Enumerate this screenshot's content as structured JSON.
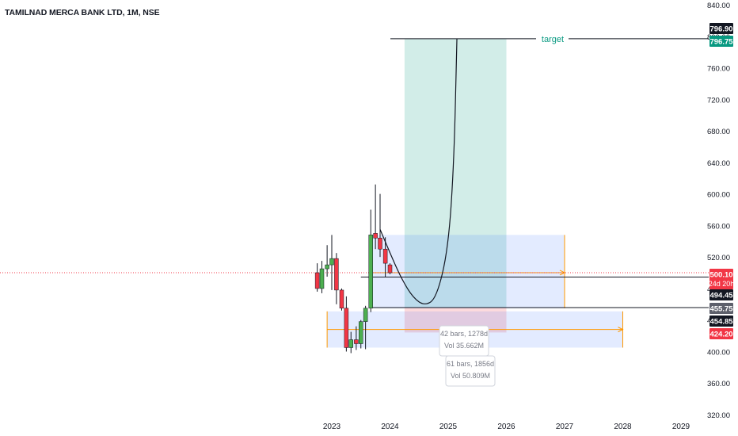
{
  "header": {
    "symbol_title": "TAMILNAD MERCA BANK LTD, 1M, NSE"
  },
  "colors": {
    "up": "#4caf50",
    "down": "#f23645",
    "target_green": "#089981",
    "price_line": "#f23645",
    "orange": "#ff9800",
    "blue_zone": "#2962ff"
  },
  "chart_data": {
    "type": "candlestick",
    "title": "TAMILNAD MERCA BANK LTD, 1M, NSE",
    "ylim": [
      320,
      845
    ],
    "y_ticks": [
      320,
      360,
      400,
      440,
      480,
      520,
      560,
      600,
      640,
      680,
      720,
      760,
      800,
      840
    ],
    "y_tick_labels": [
      "320.00",
      "360.00",
      "400.00",
      "440.00",
      "480.00",
      "520.00",
      "560.00",
      "600.00",
      "640.00",
      "680.00",
      "720.00",
      "760.00",
      "800.00",
      "840.00"
    ],
    "x_ticks": [
      2023,
      2024,
      2025,
      2026,
      2027,
      2028,
      2029
    ],
    "x_tick_labels": [
      "2023",
      "2024",
      "2025",
      "2026",
      "2027",
      "2028",
      "2029"
    ],
    "candles": [
      {
        "t": 2022.75,
        "o": 500,
        "h": 512,
        "l": 476,
        "c": 480
      },
      {
        "t": 2022.83,
        "o": 480,
        "h": 515,
        "l": 474,
        "c": 505
      },
      {
        "t": 2022.92,
        "o": 505,
        "h": 535,
        "l": 495,
        "c": 510
      },
      {
        "t": 2023.0,
        "o": 510,
        "h": 548,
        "l": 478,
        "c": 518
      },
      {
        "t": 2023.08,
        "o": 518,
        "h": 525,
        "l": 460,
        "c": 478
      },
      {
        "t": 2023.17,
        "o": 478,
        "h": 480,
        "l": 452,
        "c": 455
      },
      {
        "t": 2023.25,
        "o": 455,
        "h": 470,
        "l": 400,
        "c": 405
      },
      {
        "t": 2023.33,
        "o": 405,
        "h": 425,
        "l": 398,
        "c": 415
      },
      {
        "t": 2023.42,
        "o": 415,
        "h": 432,
        "l": 402,
        "c": 410
      },
      {
        "t": 2023.5,
        "o": 410,
        "h": 440,
        "l": 404,
        "c": 438
      },
      {
        "t": 2023.58,
        "o": 438,
        "h": 458,
        "l": 403,
        "c": 455
      },
      {
        "t": 2023.67,
        "o": 455,
        "h": 580,
        "l": 450,
        "c": 548
      },
      {
        "t": 2023.75,
        "o": 550,
        "h": 612,
        "l": 530,
        "c": 544
      },
      {
        "t": 2023.83,
        "o": 544,
        "h": 600,
        "l": 520,
        "c": 530
      },
      {
        "t": 2023.92,
        "o": 530,
        "h": 545,
        "l": 495,
        "c": 512
      },
      {
        "t": 2024.0,
        "o": 510,
        "h": 512,
        "l": 498,
        "c": 500
      }
    ],
    "price_labels": [
      {
        "value": 796.9,
        "text": "796.90",
        "bg": "#131722",
        "fg": "#ffffff"
      },
      {
        "value": 796.75,
        "text": "796.75",
        "bg": "#089981",
        "fg": "#ffffff"
      },
      {
        "value": 500.1,
        "text": "500.10",
        "sub": "24d 20h",
        "bg": "#f23645",
        "fg": "#ffffff"
      },
      {
        "value": 494.45,
        "text": "494.45",
        "bg": "#131722",
        "fg": "#ffffff"
      },
      {
        "value": 455.75,
        "text": "455.75",
        "bg": "#5d606b",
        "fg": "#ffffff"
      },
      {
        "value": 454.85,
        "text": "454.85",
        "bg": "#131722",
        "fg": "#ffffff"
      },
      {
        "value": 424.2,
        "text": "424.20",
        "bg": "#f23645",
        "fg": "#ffffff"
      }
    ],
    "current_price": 500.1,
    "target_line": {
      "value": 796.9,
      "label": "target",
      "from": 2024.17,
      "to": 2029.0
    },
    "long_position": {
      "from": 2024.25,
      "to": 2026.0,
      "entry": 455.75,
      "target": 796.75,
      "stop": 424.2
    },
    "curve_points": [
      [
        2023.83,
        555
      ],
      [
        2024.0,
        525
      ],
      [
        2024.2,
        492
      ],
      [
        2024.4,
        468
      ],
      [
        2024.6,
        458
      ],
      [
        2024.8,
        468
      ],
      [
        2025.0,
        530
      ],
      [
        2025.1,
        640
      ],
      [
        2025.15,
        796.9
      ]
    ],
    "level_lines": [
      {
        "value": 494.45,
        "from": 2023.5
      },
      {
        "value": 455.75,
        "from": 2023.7
      }
    ],
    "projections": [
      {
        "from": 2023.67,
        "to": 2027.0,
        "top": 548,
        "bottom": 454.85,
        "arrow_y": 500.1,
        "info": [
          "42 bars, 1278d",
          "Vol 35.662M"
        ]
      },
      {
        "from": 2022.92,
        "to": 2028.0,
        "top": 451,
        "bottom": 405,
        "arrow_y": 428,
        "info": [
          "61 bars, 1856d",
          "Vol 50.809M"
        ]
      }
    ]
  }
}
